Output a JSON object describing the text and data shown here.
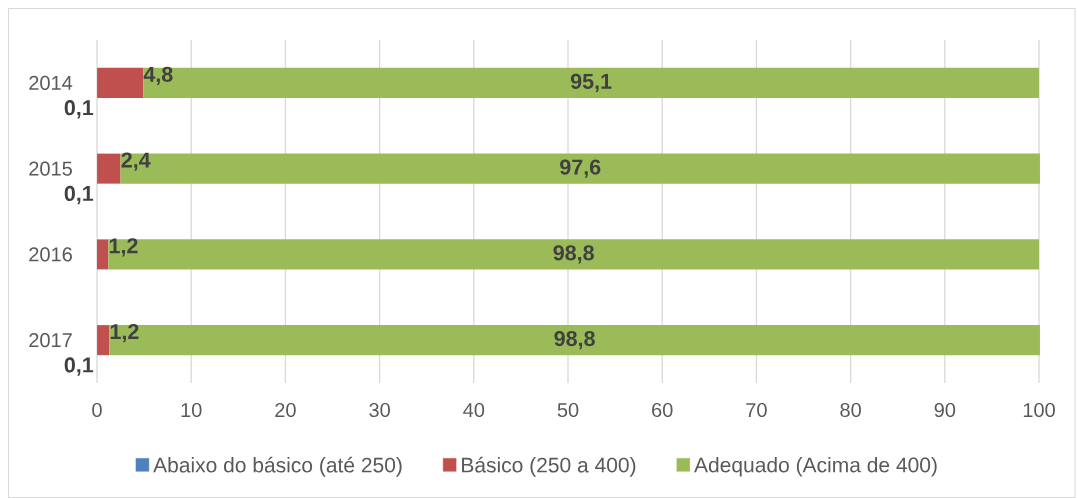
{
  "chart_data": {
    "type": "bar",
    "orientation": "horizontal",
    "stacked": true,
    "categories": [
      "2014",
      "2015",
      "2016",
      "2017"
    ],
    "series": [
      {
        "name": "Abaixo do básico (até 250)",
        "color": "#4f81bd",
        "values": [
          0.1,
          0.1,
          null,
          0.1
        ],
        "value_labels": [
          "0,1",
          "0,1",
          null,
          "0,1"
        ]
      },
      {
        "name": "Básico (250 a 400)",
        "color": "#c0504d",
        "values": [
          4.8,
          2.4,
          1.2,
          1.2
        ],
        "value_labels": [
          "4,8",
          "2,4",
          "1,2",
          "1,2"
        ]
      },
      {
        "name": "Adequado (Acima de 400)",
        "color": "#9bbb59",
        "values": [
          95.1,
          97.6,
          98.8,
          98.8
        ],
        "value_labels": [
          "95,1",
          "97,6",
          "98,8",
          "98,8"
        ]
      }
    ],
    "xlim": [
      0,
      100
    ],
    "xticks": [
      0,
      10,
      20,
      30,
      40,
      50,
      60,
      70,
      80,
      90,
      100
    ],
    "grid": "x",
    "legend": "bottom"
  }
}
